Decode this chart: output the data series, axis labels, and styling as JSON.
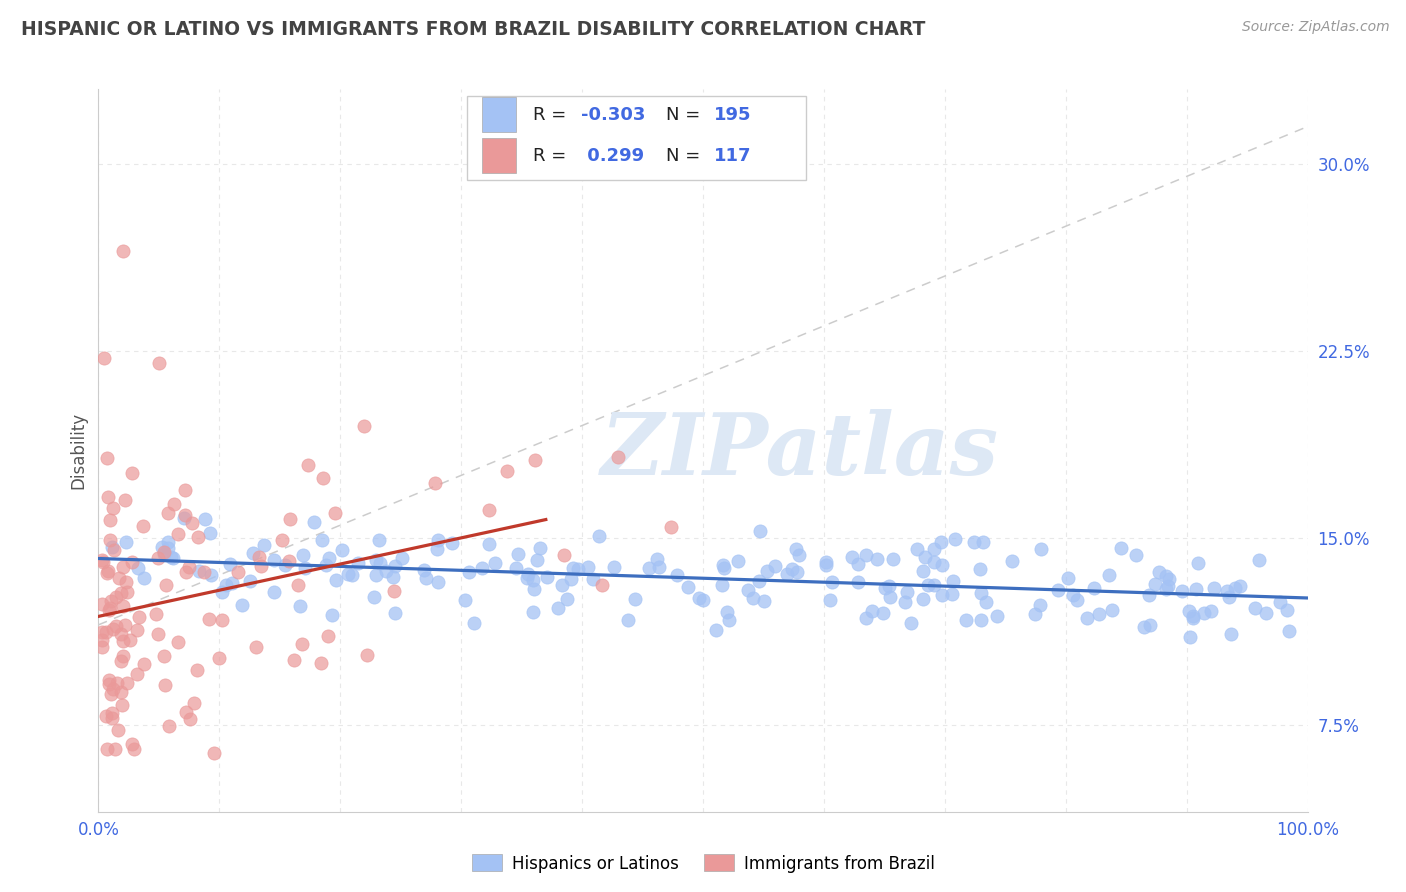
{
  "title": "HISPANIC OR LATINO VS IMMIGRANTS FROM BRAZIL DISABILITY CORRELATION CHART",
  "source": "Source: ZipAtlas.com",
  "ylabel": "Disability",
  "xlim": [
    0.0,
    100.0
  ],
  "ylim": [
    4.0,
    33.0
  ],
  "ytick_vals": [
    7.5,
    15.0,
    22.5,
    30.0
  ],
  "xtick_vals": [
    0,
    10,
    20,
    30,
    40,
    50,
    60,
    70,
    80,
    90,
    100
  ],
  "blue_scatter_color": "#a4c2f4",
  "pink_scatter_color": "#ea9999",
  "blue_line_color": "#3d6ebf",
  "pink_line_color": "#c0392b",
  "ref_line_color": "#cccccc",
  "grid_color": "#e8e8e8",
  "axis_label_color": "#4169e1",
  "title_color": "#434343",
  "source_color": "#999999",
  "watermark_text": "ZIPatlas",
  "watermark_color": "#dde8f5",
  "blue_label": "Hispanics or Latinos",
  "pink_label": "Immigrants from Brazil",
  "r1": -0.303,
  "n1": 195,
  "r2": 0.299,
  "n2": 117,
  "blue_seed": 101,
  "pink_seed": 202
}
